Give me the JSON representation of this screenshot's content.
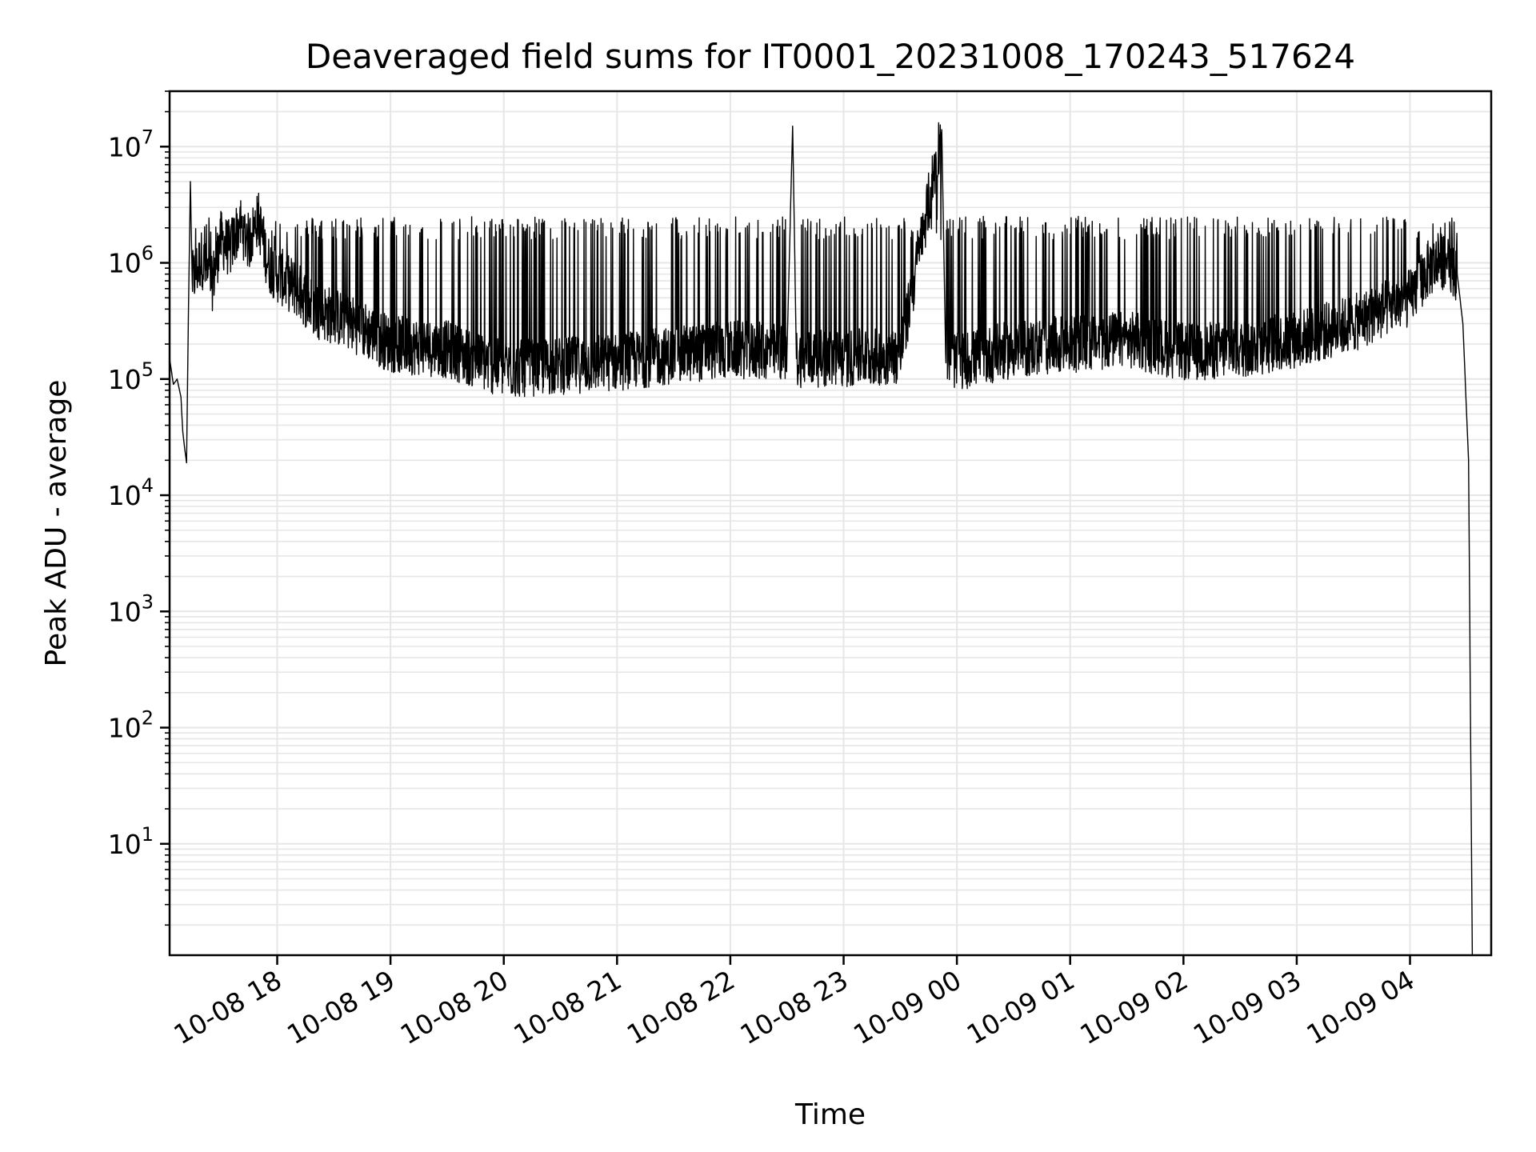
{
  "chart_data": {
    "type": "line",
    "title": "Deaveraged field sums for IT0001_20231008_170243_517624",
    "xlabel": "Time",
    "ylabel": "Peak ADU - average",
    "yscale": "log",
    "ylim": [
      1.1,
      30000000
    ],
    "xlim": [
      "2023-10-08 17:03",
      "2023-10-09 04:43"
    ],
    "grid": true,
    "line_color": "#000000",
    "grid_color": "#e6e6e6",
    "x_ticks": [
      {
        "value": "2023-10-08 18:00",
        "label": "10-08 18"
      },
      {
        "value": "2023-10-08 19:00",
        "label": "10-08 19"
      },
      {
        "value": "2023-10-08 20:00",
        "label": "10-08 20"
      },
      {
        "value": "2023-10-08 21:00",
        "label": "10-08 21"
      },
      {
        "value": "2023-10-08 22:00",
        "label": "10-08 22"
      },
      {
        "value": "2023-10-08 23:00",
        "label": "10-08 23"
      },
      {
        "value": "2023-10-09 00:00",
        "label": "10-09 00"
      },
      {
        "value": "2023-10-09 01:00",
        "label": "10-09 01"
      },
      {
        "value": "2023-10-09 02:00",
        "label": "10-09 02"
      },
      {
        "value": "2023-10-09 03:00",
        "label": "10-09 03"
      },
      {
        "value": "2023-10-09 04:00",
        "label": "10-09 04"
      }
    ],
    "y_ticks": [
      {
        "value": 10,
        "base": "10",
        "exp": "1"
      },
      {
        "value": 100,
        "base": "10",
        "exp": "2"
      },
      {
        "value": 1000,
        "base": "10",
        "exp": "3"
      },
      {
        "value": 10000,
        "base": "10",
        "exp": "4"
      },
      {
        "value": 100000,
        "base": "10",
        "exp": "5"
      },
      {
        "value": 1000000,
        "base": "10",
        "exp": "6"
      },
      {
        "value": 10000000,
        "base": "10",
        "exp": "7"
      }
    ],
    "series": [
      {
        "points": [
          [
            "2023-10-08 17:03",
            150000
          ],
          [
            "2023-10-08 17:05",
            90000
          ],
          [
            "2023-10-08 17:07",
            100000
          ],
          [
            "2023-10-08 17:09",
            70000
          ],
          [
            "2023-10-08 17:10",
            35000
          ],
          [
            "2023-10-08 17:11",
            25000
          ],
          [
            "2023-10-08 17:12",
            19000
          ],
          [
            "2023-10-08 17:13",
            400000
          ],
          [
            "2023-10-08 17:14",
            5000000
          ],
          [
            "2023-10-08 17:15",
            700000
          ],
          [
            "2023-10-08 17:20",
            1100000
          ],
          [
            "2023-10-08 17:25",
            600000
          ],
          [
            "2023-10-08 17:30",
            1600000
          ],
          [
            "2023-10-08 17:35",
            1300000
          ],
          [
            "2023-10-08 17:40",
            2200000
          ],
          [
            "2023-10-08 17:45",
            1500000
          ],
          [
            "2023-10-08 17:50",
            2400000
          ],
          [
            "2023-10-08 17:55",
            1000000
          ],
          [
            "2023-10-08 18:00",
            800000
          ],
          [
            "2023-10-08 18:10",
            600000
          ],
          [
            "2023-10-08 18:20",
            400000
          ],
          [
            "2023-10-08 18:40",
            300000
          ],
          [
            "2023-10-08 19:00",
            200000
          ],
          [
            "2023-10-08 19:30",
            180000
          ],
          [
            "2023-10-08 20:00",
            120000
          ],
          [
            "2023-10-08 20:30",
            130000
          ],
          [
            "2023-10-08 21:00",
            140000
          ],
          [
            "2023-10-08 21:30",
            160000
          ],
          [
            "2023-10-08 22:00",
            180000
          ],
          [
            "2023-10-08 22:30",
            170000
          ],
          [
            "2023-10-08 22:33",
            15000000
          ],
          [
            "2023-10-08 22:35",
            150000
          ],
          [
            "2023-10-08 23:00",
            150000
          ],
          [
            "2023-10-08 23:30",
            160000
          ],
          [
            "2023-10-08 23:52",
            14000000
          ],
          [
            "2023-10-08 23:54",
            170000
          ],
          [
            "2023-10-09 00:00",
            140000
          ],
          [
            "2023-10-09 00:30",
            180000
          ],
          [
            "2023-10-09 01:00",
            200000
          ],
          [
            "2023-10-09 01:30",
            220000
          ],
          [
            "2023-10-09 02:00",
            170000
          ],
          [
            "2023-10-09 02:30",
            180000
          ],
          [
            "2023-10-09 03:00",
            220000
          ],
          [
            "2023-10-09 03:30",
            300000
          ],
          [
            "2023-10-09 04:00",
            500000
          ],
          [
            "2023-10-09 04:10",
            900000
          ],
          [
            "2023-10-09 04:20",
            1100000
          ],
          [
            "2023-10-09 04:25",
            800000
          ],
          [
            "2023-10-09 04:28",
            300000
          ],
          [
            "2023-10-09 04:31",
            20000
          ],
          [
            "2023-10-09 04:33",
            1.1
          ]
        ]
      }
    ]
  }
}
